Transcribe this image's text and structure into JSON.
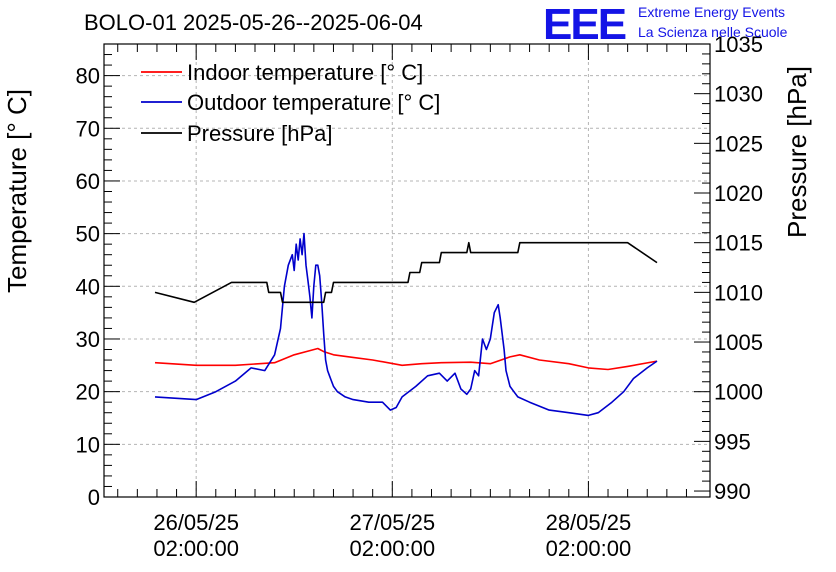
{
  "header": {
    "title": "BOLO-01 2025-05-26--2025-06-04",
    "logo": "EEE",
    "logo_line1": "Extreme Energy Events",
    "logo_line2": "La Scienza nelle Scuole"
  },
  "chart_data": {
    "type": "line",
    "title": "BOLO-01 2025-05-26--2025-06-04",
    "ylabel": "Temperature [° C]",
    "y2label": "Pressure [hPa]",
    "ylim": [
      0,
      86
    ],
    "y2lim": [
      989.4,
      1035
    ],
    "xlim": [
      -0.47,
      2.62
    ],
    "x_unit": "days after 26/05/25 02:00:00",
    "yticks": [
      0,
      10,
      20,
      30,
      40,
      50,
      60,
      70,
      80
    ],
    "y2ticks": [
      990,
      995,
      1000,
      1005,
      1010,
      1015,
      1020,
      1025,
      1030,
      1035
    ],
    "xticks": [
      {
        "x": 0,
        "line1": "26/05/25",
        "line2": "02:00:00"
      },
      {
        "x": 1,
        "line1": "27/05/25",
        "line2": "02:00:00"
      },
      {
        "x": 2,
        "line1": "28/05/25",
        "line2": "02:00:00"
      }
    ],
    "grid": true,
    "legend_position": "top-left",
    "series": [
      {
        "name": "Indoor temperature [° C]",
        "axis": "left",
        "color": "#ff0000",
        "x": [
          -0.21,
          0.0,
          0.2,
          0.4,
          0.5,
          0.58,
          0.62,
          0.65,
          0.7,
          0.8,
          0.9,
          1.05,
          1.15,
          1.25,
          1.4,
          1.5,
          1.6,
          1.65,
          1.75,
          1.9,
          2.0,
          2.1,
          2.2,
          2.35
        ],
        "y": [
          25.5,
          25.0,
          25.0,
          25.5,
          27.0,
          27.8,
          28.2,
          27.6,
          27.0,
          26.5,
          26.0,
          25.0,
          25.3,
          25.5,
          25.6,
          25.3,
          26.6,
          27.0,
          26.0,
          25.3,
          24.5,
          24.2,
          24.8,
          25.8
        ]
      },
      {
        "name": "Outdoor temperature [° C]",
        "axis": "left",
        "color": "#0000cc",
        "x": [
          -0.21,
          0.0,
          0.1,
          0.2,
          0.28,
          0.35,
          0.4,
          0.43,
          0.45,
          0.47,
          0.49,
          0.5,
          0.51,
          0.52,
          0.53,
          0.54,
          0.55,
          0.56,
          0.57,
          0.58,
          0.59,
          0.6,
          0.61,
          0.62,
          0.63,
          0.64,
          0.65,
          0.66,
          0.67,
          0.68,
          0.69,
          0.7,
          0.72,
          0.76,
          0.8,
          0.88,
          0.95,
          0.99,
          1.02,
          1.05,
          1.12,
          1.18,
          1.24,
          1.28,
          1.32,
          1.35,
          1.38,
          1.4,
          1.42,
          1.44,
          1.46,
          1.48,
          1.5,
          1.52,
          1.54,
          1.55,
          1.57,
          1.58,
          1.6,
          1.62,
          1.64,
          1.7,
          1.8,
          1.9,
          2.0,
          2.05,
          2.12,
          2.18,
          2.23,
          2.3,
          2.35
        ],
        "y": [
          19.0,
          18.5,
          20.0,
          22.0,
          24.5,
          24.0,
          27.0,
          32.0,
          40.0,
          44.0,
          46.0,
          43.0,
          48.0,
          45.0,
          49.0,
          46.0,
          50.0,
          44.0,
          41.0,
          38.0,
          34.0,
          40.0,
          44.0,
          44.0,
          42.0,
          37.0,
          31.0,
          26.0,
          24.0,
          23.0,
          22.0,
          21.0,
          20.0,
          19.0,
          18.5,
          18.0,
          18.0,
          16.5,
          17.0,
          19.0,
          21.0,
          23.0,
          23.5,
          22.0,
          23.5,
          20.5,
          19.5,
          20.5,
          24.0,
          23.0,
          30.0,
          28.0,
          30.0,
          35.0,
          36.5,
          34.0,
          28.0,
          24.0,
          21.0,
          20.0,
          19.0,
          18.0,
          16.5,
          16.0,
          15.5,
          16.0,
          18.0,
          20.0,
          22.5,
          24.5,
          25.8
        ]
      },
      {
        "name": "Pressure [hPa]",
        "axis": "right",
        "color": "#000000",
        "x": [
          -0.21,
          -0.01,
          0.18,
          0.36,
          0.37,
          0.43,
          0.44,
          0.65,
          0.66,
          0.69,
          0.7,
          1.08,
          1.09,
          1.14,
          1.15,
          1.24,
          1.25,
          1.38,
          1.39,
          1.4,
          1.41,
          1.64,
          1.65,
          2.2,
          2.35
        ],
        "y": [
          1010.0,
          1009.0,
          1011.0,
          1011.0,
          1010.0,
          1010.0,
          1009.0,
          1009.0,
          1010.0,
          1010.0,
          1011.0,
          1011.0,
          1012.0,
          1012.0,
          1013.0,
          1013.0,
          1014.0,
          1014.0,
          1015.0,
          1014.0,
          1014.0,
          1014.0,
          1015.0,
          1015.0,
          1013.0
        ]
      }
    ]
  }
}
